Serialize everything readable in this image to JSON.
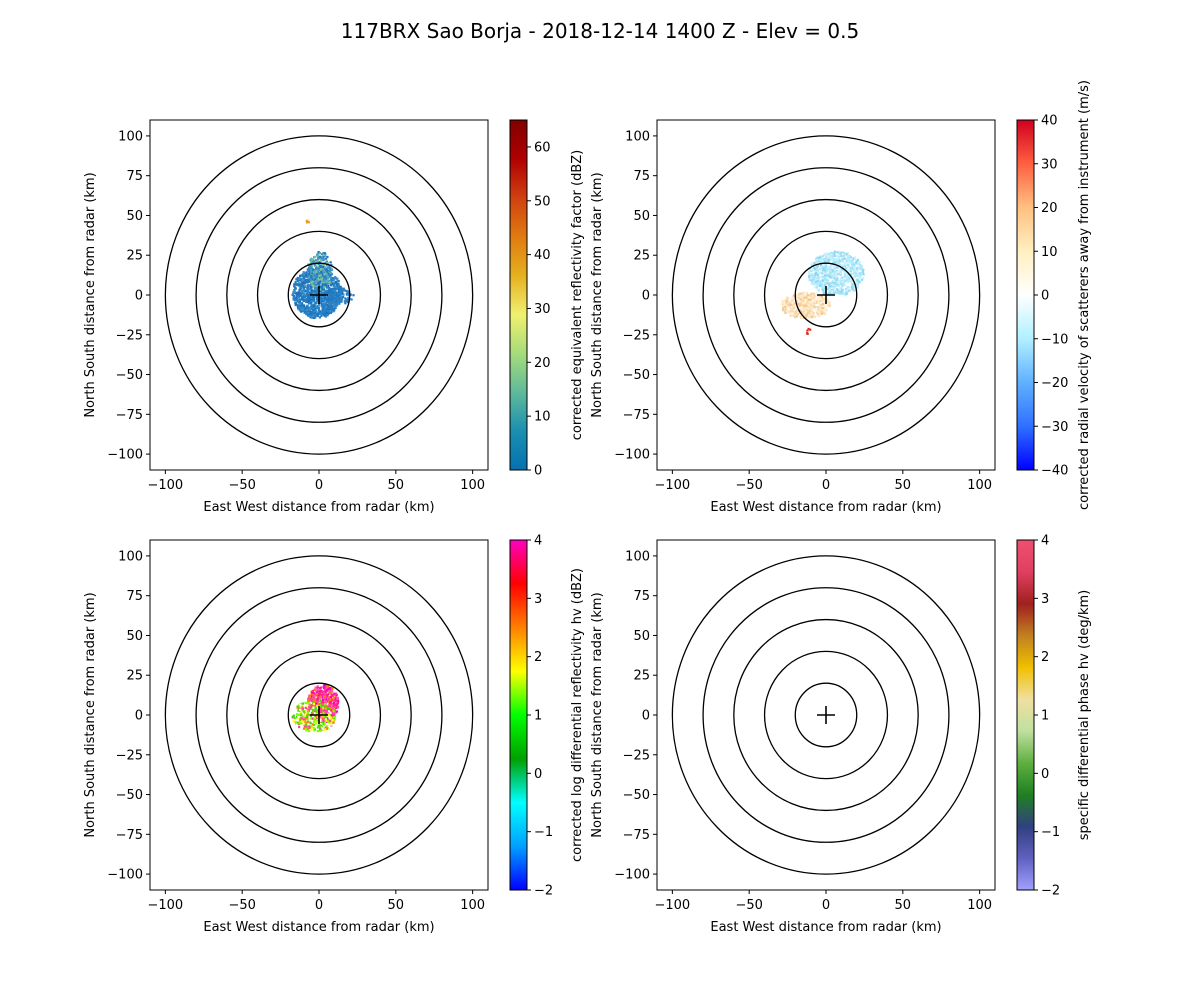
{
  "title": "117BRX Sao Borja - 2018-12-14 1400 Z -  Elev = 0.5",
  "chart_data": [
    {
      "type": "heatmap",
      "id": "reflectivity",
      "xlabel": "East West distance from radar (km)",
      "ylabel": "North South distance from radar (km)",
      "xlim": [
        -110,
        110
      ],
      "ylim": [
        -110,
        110
      ],
      "xticks": [
        -100,
        -50,
        0,
        50,
        100
      ],
      "yticks": [
        -100,
        -75,
        -50,
        -25,
        0,
        25,
        50,
        75,
        100
      ],
      "range_rings_km": [
        20,
        40,
        60,
        80,
        100
      ],
      "colorbar": {
        "label": "corrected equivalent reflectivity factor (dBZ)",
        "range": [
          0,
          65
        ],
        "ticks": [
          0,
          10,
          20,
          30,
          40,
          50,
          60
        ],
        "colors": [
          "#0571b0",
          "#1b8fb0",
          "#5fba9a",
          "#a6dc7a",
          "#f0f070",
          "#e5b020",
          "#e07a10",
          "#d04010",
          "#b00000",
          "#800000"
        ]
      },
      "echo_color": "#1f78c1"
    },
    {
      "type": "heatmap",
      "id": "velocity",
      "xlabel": "East West distance from radar (km)",
      "ylabel": "North South distance from radar (km)",
      "xlim": [
        -110,
        110
      ],
      "ylim": [
        -110,
        110
      ],
      "xticks": [
        -100,
        -50,
        0,
        50,
        100
      ],
      "yticks": [
        -100,
        -75,
        -50,
        -25,
        0,
        25,
        50,
        75,
        100
      ],
      "range_rings_km": [
        20,
        40,
        60,
        80,
        100
      ],
      "colorbar": {
        "label": "corrected radial velocity of scatterers away from instrument (m/s)",
        "range": [
          -40,
          40
        ],
        "ticks": [
          -40,
          -30,
          -20,
          -10,
          0,
          10,
          20,
          30,
          40
        ],
        "colors": [
          "#0000ff",
          "#3070ff",
          "#60b0ff",
          "#b0f0ff",
          "#ffffff",
          "#fff0c0",
          "#ffc080",
          "#ff6040",
          "#d00020"
        ]
      },
      "echo_color": "#b8ecfa",
      "echo_color_2": "#fde5c0"
    },
    {
      "type": "heatmap",
      "id": "zdr",
      "xlabel": "East West distance from radar (km)",
      "ylabel": "North South distance from radar (km)",
      "xlim": [
        -110,
        110
      ],
      "ylim": [
        -110,
        110
      ],
      "xticks": [
        -100,
        -50,
        0,
        50,
        100
      ],
      "yticks": [
        -100,
        -75,
        -50,
        -25,
        0,
        25,
        50,
        75,
        100
      ],
      "range_rings_km": [
        20,
        40,
        60,
        80,
        100
      ],
      "colorbar": {
        "label": "corrected log differential reflectivity hv (dBZ)",
        "range": [
          -2,
          4
        ],
        "ticks": [
          -2,
          -1,
          0,
          1,
          2,
          3,
          4
        ],
        "colors": [
          "#0000ff",
          "#00a0ff",
          "#00ffff",
          "#00a000",
          "#00ff00",
          "#ffff00",
          "#ff8000",
          "#ff0000",
          "#ff00c0"
        ]
      },
      "echo_color": "#ff40a0"
    },
    {
      "type": "heatmap",
      "id": "kdp",
      "xlabel": "East West distance from radar (km)",
      "ylabel": "North South distance from radar (km)",
      "xlim": [
        -110,
        110
      ],
      "ylim": [
        -110,
        110
      ],
      "xticks": [
        -100,
        -50,
        0,
        50,
        100
      ],
      "yticks": [
        -100,
        -75,
        -50,
        -25,
        0,
        25,
        50,
        75,
        100
      ],
      "range_rings_km": [
        20,
        40,
        60,
        80,
        100
      ],
      "colorbar": {
        "label": "specific differential phase hv (deg/km)",
        "range": [
          -2,
          4
        ],
        "ticks": [
          -2,
          -1,
          0,
          1,
          2,
          3,
          4
        ],
        "colors": [
          "#a0a0ff",
          "#6060c0",
          "#304080",
          "#208020",
          "#60b040",
          "#c0e0a0",
          "#f0e0a0",
          "#f0c000",
          "#c08020",
          "#a02020",
          "#e04060",
          "#f05070"
        ]
      }
    }
  ]
}
